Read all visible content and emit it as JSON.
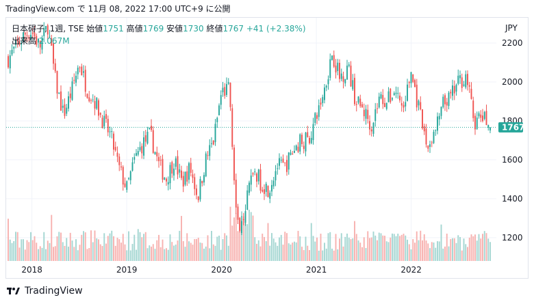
{
  "header": {
    "source": "TradingView.com",
    "timestamp": "で 11月 08, 2022 17:00 UTC+9 に公開"
  },
  "legend": {
    "symbol": "日本碍子, 1週, TSE",
    "open_label": "始値",
    "open": "1751",
    "high_label": "高値",
    "high": "1769",
    "low_label": "安値",
    "low": "1730",
    "close_label": "終値",
    "close": "1767",
    "change": "+41 (+2.38%)",
    "volume_label": "出来高",
    "volume": "2.067M"
  },
  "currency": "JPY",
  "price_label": "1767",
  "footer": {
    "logo_text": "TradingView"
  },
  "colors": {
    "up": "#26a69a",
    "down": "#ef5350",
    "vol_up": "#a5d7d2",
    "vol_down": "#f7b2b0",
    "grid": "#f0f3fa"
  },
  "chart_data": {
    "type": "candlestick",
    "interval": "1 week",
    "y_ticks": [
      1200,
      1400,
      1600,
      1800,
      2000,
      2200
    ],
    "x_ticks": [
      "2018",
      "2019",
      "2020",
      "2021",
      "2022"
    ],
    "ylim": [
      1080,
      2330
    ],
    "last_close": 1767,
    "close_path": [
      [
        "2017-10",
        2120
      ],
      [
        "2017-12",
        2240
      ],
      [
        "2018-01",
        2260
      ],
      [
        "2018-02",
        2180
      ],
      [
        "2018-03",
        2290
      ],
      [
        "2018-04",
        2000
      ],
      [
        "2018-05",
        1830
      ],
      [
        "2018-06",
        1950
      ],
      [
        "2018-07",
        2100
      ],
      [
        "2018-08",
        1960
      ],
      [
        "2018-09",
        1900
      ],
      [
        "2018-10",
        1800
      ],
      [
        "2018-11",
        1720
      ],
      [
        "2018-12",
        1560
      ],
      [
        "2019-01",
        1450
      ],
      [
        "2019-02",
        1600
      ],
      [
        "2019-03",
        1680
      ],
      [
        "2019-04",
        1730
      ],
      [
        "2019-05",
        1580
      ],
      [
        "2019-06",
        1500
      ],
      [
        "2019-07",
        1600
      ],
      [
        "2019-08",
        1480
      ],
      [
        "2019-09",
        1560
      ],
      [
        "2019-10",
        1410
      ],
      [
        "2019-11",
        1600
      ],
      [
        "2019-12",
        1700
      ],
      [
        "2020-01",
        1950
      ],
      [
        "2020-02",
        1960
      ],
      [
        "2020-03",
        1240
      ],
      [
        "2020-04",
        1360
      ],
      [
        "2020-05",
        1560
      ],
      [
        "2020-06",
        1480
      ],
      [
        "2020-07",
        1450
      ],
      [
        "2020-08",
        1570
      ],
      [
        "2020-09",
        1560
      ],
      [
        "2020-10",
        1640
      ],
      [
        "2020-11",
        1700
      ],
      [
        "2020-12",
        1700
      ],
      [
        "2021-01",
        1820
      ],
      [
        "2021-02",
        1960
      ],
      [
        "2021-03",
        2150
      ],
      [
        "2021-04",
        2020
      ],
      [
        "2021-05",
        2080
      ],
      [
        "2021-06",
        1900
      ],
      [
        "2021-07",
        1850
      ],
      [
        "2021-08",
        1780
      ],
      [
        "2021-09",
        1920
      ],
      [
        "2021-10",
        1900
      ],
      [
        "2021-11",
        1960
      ],
      [
        "2021-12",
        1860
      ],
      [
        "2022-01",
        2050
      ],
      [
        "2022-02",
        1850
      ],
      [
        "2022-03",
        1660
      ],
      [
        "2022-04",
        1740
      ],
      [
        "2022-05",
        1880
      ],
      [
        "2022-06",
        1920
      ],
      [
        "2022-07",
        2000
      ],
      [
        "2022-08",
        2030
      ],
      [
        "2022-09",
        1790
      ],
      [
        "2022-10",
        1820
      ],
      [
        "2022-11",
        1767
      ]
    ]
  }
}
